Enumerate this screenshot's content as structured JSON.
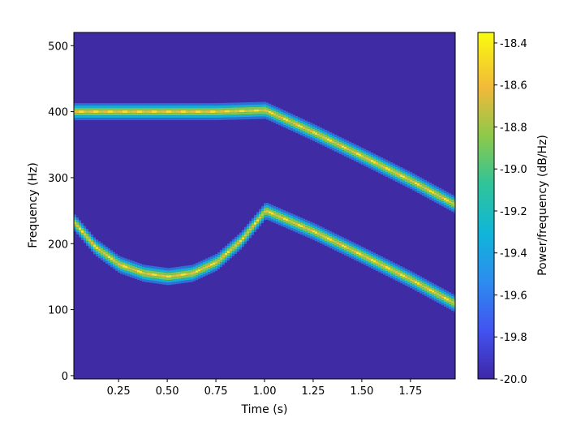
{
  "chart_data": {
    "type": "heatmap",
    "xlabel": "Time (s)",
    "ylabel": "Frequency (Hz)",
    "xlim": [
      0.02,
      1.98
    ],
    "ylim": [
      -5,
      520
    ],
    "x_ticks": [
      "0.25",
      "0.50",
      "0.75",
      "1.00",
      "1.25",
      "1.50",
      "1.75"
    ],
    "x_tick_values": [
      0.25,
      0.5,
      0.75,
      1.0,
      1.25,
      1.5,
      1.75
    ],
    "y_ticks": [
      "0",
      "100",
      "200",
      "300",
      "400",
      "500"
    ],
    "y_tick_values": [
      0,
      100,
      200,
      300,
      400,
      500
    ],
    "colorbar": {
      "label": "Power/frequency (dB/Hz)",
      "range": [
        -20.0,
        -18.35
      ],
      "ticks": [
        "-20.0",
        "-19.8",
        "-19.6",
        "-19.4",
        "-19.2",
        "-19.0",
        "-18.8",
        "-18.6",
        "-18.4"
      ],
      "tick_values": [
        -20.0,
        -19.8,
        -19.6,
        -19.4,
        -19.2,
        -19.0,
        -18.8,
        -18.6,
        -18.4
      ],
      "colormap": "viridis"
    },
    "background_level_db": -20.0,
    "peak_level_db": -18.4,
    "series": [
      {
        "component": "upper",
        "time_s": [
          0.0,
          0.25,
          0.5,
          0.75,
          1.0,
          1.25,
          1.5,
          1.75,
          1.98
        ],
        "frequency_hz": [
          400,
          400,
          400,
          400,
          402,
          368,
          332,
          295,
          258
        ]
      },
      {
        "component": "lower",
        "time_s": [
          0.0,
          0.125,
          0.25,
          0.375,
          0.5,
          0.625,
          0.75,
          0.875,
          1.0,
          1.25,
          1.5,
          1.75,
          1.98
        ],
        "frequency_hz": [
          238,
          195,
          168,
          155,
          150,
          155,
          172,
          205,
          250,
          218,
          182,
          145,
          108
        ]
      }
    ]
  },
  "colors": {
    "background": "#3f2ba3",
    "axes_frame": "#000000"
  }
}
